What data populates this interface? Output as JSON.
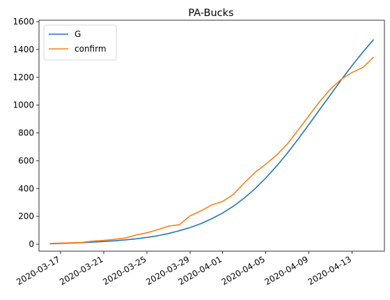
{
  "chart_data": {
    "type": "line",
    "title": "PA-Bucks",
    "xlabel": "",
    "ylabel": "",
    "x_ticks": [
      "2020-03-17",
      "2020-03-21",
      "2020-03-25",
      "2020-03-29",
      "2020-04-01",
      "2020-04-05",
      "2020-04-09",
      "2020-04-13"
    ],
    "y_ticks": [
      0,
      200,
      400,
      600,
      800,
      1000,
      1200,
      1400,
      1600
    ],
    "ylim": [
      -50,
      1610
    ],
    "xlim": [
      "2020-03-15",
      "2020-04-16"
    ],
    "grid": false,
    "legend": "top-left",
    "series": [
      {
        "name": "G",
        "color": "#1f77b4",
        "x": [
          "2020-03-16",
          "2020-03-17",
          "2020-03-18",
          "2020-03-19",
          "2020-03-20",
          "2020-03-21",
          "2020-03-22",
          "2020-03-23",
          "2020-03-24",
          "2020-03-25",
          "2020-03-26",
          "2020-03-27",
          "2020-03-28",
          "2020-03-29",
          "2020-03-30",
          "2020-03-31",
          "2020-04-01",
          "2020-04-02",
          "2020-04-03",
          "2020-04-04",
          "2020-04-05",
          "2020-04-06",
          "2020-04-07",
          "2020-04-08",
          "2020-04-09",
          "2020-04-10",
          "2020-04-11",
          "2020-04-12",
          "2020-04-13",
          "2020-04-14",
          "2020-04-15"
        ],
        "values": [
          3,
          5,
          8,
          11,
          15,
          19,
          24,
          31,
          39,
          49,
          61,
          77,
          97,
          120,
          148,
          183,
          224,
          273,
          331,
          398,
          475,
          561,
          654,
          755,
          860,
          968,
          1074,
          1181,
          1284,
          1381,
          1471
        ]
      },
      {
        "name": "confirm",
        "color": "#ff7f0e",
        "x": [
          "2020-03-16",
          "2020-03-17",
          "2020-03-18",
          "2020-03-19",
          "2020-03-20",
          "2020-03-21",
          "2020-03-22",
          "2020-03-23",
          "2020-03-24",
          "2020-03-25",
          "2020-03-26",
          "2020-03-27",
          "2020-03-28",
          "2020-03-29",
          "2020-03-30",
          "2020-03-31",
          "2020-04-01",
          "2020-04-02",
          "2020-04-03",
          "2020-04-04",
          "2020-04-05",
          "2020-04-06",
          "2020-04-07",
          "2020-04-08",
          "2020-04-09",
          "2020-04-10",
          "2020-04-11",
          "2020-04-12",
          "2020-04-13",
          "2020-04-14",
          "2020-04-15"
        ],
        "values": [
          5,
          8,
          10,
          13,
          22,
          27,
          35,
          45,
          67,
          82,
          105,
          130,
          140,
          204,
          240,
          282,
          307,
          357,
          440,
          515,
          575,
          640,
          720,
          820,
          923,
          1025,
          1115,
          1185,
          1235,
          1270,
          1345
        ]
      }
    ]
  }
}
